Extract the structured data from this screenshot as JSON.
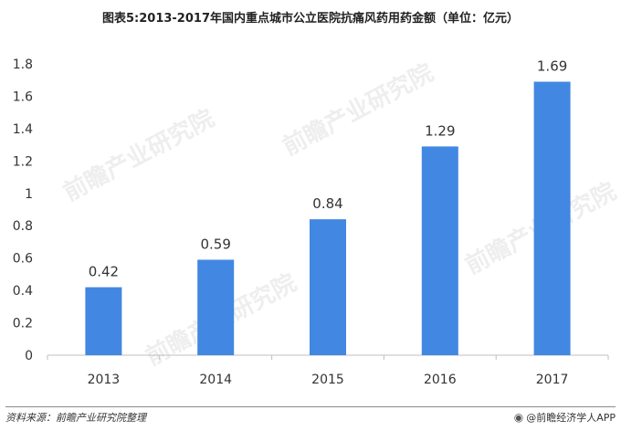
{
  "title": "图表5:2013-2017年国内重点城市公立医院抗痛风药用药金额（单位：亿元）",
  "footer": {
    "source": "资料来源：前瞻产业研究院整理",
    "brand": "@前瞻经济学人APP",
    "brand_icon": "circle-logo-icon"
  },
  "watermark": "前瞻产业研究院",
  "colors": {
    "bar": "#4287e2",
    "axis": "#bfbfbf",
    "text": "#333333"
  },
  "chart_data": {
    "type": "bar",
    "categories": [
      "2013",
      "2014",
      "2015",
      "2016",
      "2017"
    ],
    "values": [
      0.42,
      0.59,
      0.84,
      1.29,
      1.69
    ],
    "data_labels": [
      "0.42",
      "0.59",
      "0.84",
      "1.29",
      "1.69"
    ],
    "yticks": [
      "0",
      "0.2",
      "0.4",
      "0.6",
      "0.8",
      "1",
      "1.2",
      "1.4",
      "1.6",
      "1.8"
    ],
    "ylim": [
      0,
      1.8
    ],
    "xlabel": "",
    "ylabel": "",
    "grid": false,
    "legend": "none"
  }
}
